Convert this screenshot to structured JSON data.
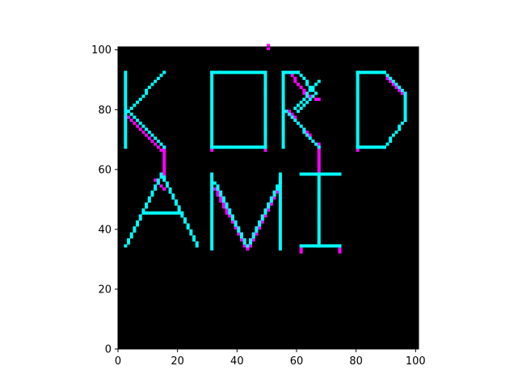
{
  "chart_data": {
    "type": "heatmap",
    "title": "",
    "xlabel": "",
    "ylabel": "",
    "xlim": [
      0,
      101
    ],
    "ylim": [
      0,
      101
    ],
    "x_ticks": [
      0,
      20,
      40,
      60,
      80,
      100
    ],
    "y_ticks": [
      0,
      20,
      40,
      60,
      80,
      100
    ],
    "x_tick_labels": [
      "0",
      "20",
      "40",
      "60",
      "80",
      "100"
    ],
    "y_tick_labels": [
      "0",
      "20",
      "40",
      "60",
      "80",
      "100"
    ],
    "grid": false,
    "colors": {
      "background": "#000000",
      "primary": "#00ffff",
      "secondary": "#ff00ff"
    },
    "cyan_strokes": [
      [
        [
          2,
          67
        ],
        [
          2,
          92
        ]
      ],
      [
        [
          3,
          79
        ],
        [
          15,
          92
        ]
      ],
      [
        [
          3,
          79
        ],
        [
          15,
          67
        ]
      ],
      [
        [
          31,
          67
        ],
        [
          31,
          92
        ]
      ],
      [
        [
          31,
          92
        ],
        [
          49,
          92
        ]
      ],
      [
        [
          49,
          92
        ],
        [
          49,
          67
        ]
      ],
      [
        [
          31,
          67
        ],
        [
          49,
          67
        ]
      ],
      [
        [
          55,
          67
        ],
        [
          55,
          92
        ]
      ],
      [
        [
          55,
          92
        ],
        [
          60,
          92
        ]
      ],
      [
        [
          60,
          92
        ],
        [
          66,
          85
        ]
      ],
      [
        [
          66,
          85
        ],
        [
          60,
          79
        ]
      ],
      [
        [
          56,
          79
        ],
        [
          67,
          67
        ]
      ],
      [
        [
          59,
          80
        ],
        [
          67,
          89
        ]
      ],
      [
        [
          80,
          67
        ],
        [
          80,
          92
        ]
      ],
      [
        [
          80,
          92
        ],
        [
          89,
          92
        ]
      ],
      [
        [
          89,
          92
        ],
        [
          96,
          85
        ]
      ],
      [
        [
          96,
          85
        ],
        [
          96,
          76
        ]
      ],
      [
        [
          96,
          76
        ],
        [
          89,
          67
        ]
      ],
      [
        [
          80,
          67
        ],
        [
          89,
          67
        ]
      ],
      [
        [
          2,
          34
        ],
        [
          14,
          58
        ]
      ],
      [
        [
          14,
          58
        ],
        [
          26,
          34
        ]
      ],
      [
        [
          8,
          45
        ],
        [
          21,
          45
        ]
      ],
      [
        [
          31,
          33
        ],
        [
          31,
          58
        ]
      ],
      [
        [
          32,
          55
        ],
        [
          43,
          34
        ]
      ],
      [
        [
          43,
          34
        ],
        [
          54,
          55
        ]
      ],
      [
        [
          54,
          58
        ],
        [
          54,
          33
        ]
      ],
      [
        [
          61,
          58
        ],
        [
          74,
          58
        ]
      ],
      [
        [
          67,
          58
        ],
        [
          67,
          34
        ]
      ],
      [
        [
          61,
          34
        ],
        [
          74,
          34
        ]
      ]
    ],
    "magenta_strokes": [
      [
        [
          3,
          77
        ],
        [
          14,
          66
        ]
      ],
      [
        [
          15,
          67
        ],
        [
          15,
          56
        ]
      ],
      [
        [
          12,
          56
        ],
        [
          15,
          53
        ]
      ],
      [
        [
          31,
          67
        ],
        [
          31,
          66
        ]
      ],
      [
        [
          49,
          67
        ],
        [
          49,
          66
        ]
      ],
      [
        [
          50,
          101
        ],
        [
          50,
          100
        ]
      ],
      [
        [
          57,
          92
        ],
        [
          63,
          84
        ]
      ],
      [
        [
          63,
          84
        ],
        [
          67,
          83
        ]
      ],
      [
        [
          57,
          79
        ],
        [
          66,
          68
        ]
      ],
      [
        [
          67,
          68
        ],
        [
          67,
          59
        ]
      ],
      [
        [
          80,
          67
        ],
        [
          80,
          66
        ]
      ],
      [
        [
          90,
          90
        ],
        [
          95,
          85
        ]
      ],
      [
        [
          32,
          53
        ],
        [
          43,
          33
        ]
      ],
      [
        [
          43,
          33
        ],
        [
          53,
          53
        ]
      ],
      [
        [
          61,
          33
        ],
        [
          61,
          32
        ]
      ],
      [
        [
          74,
          33
        ],
        [
          74,
          32
        ]
      ]
    ]
  }
}
